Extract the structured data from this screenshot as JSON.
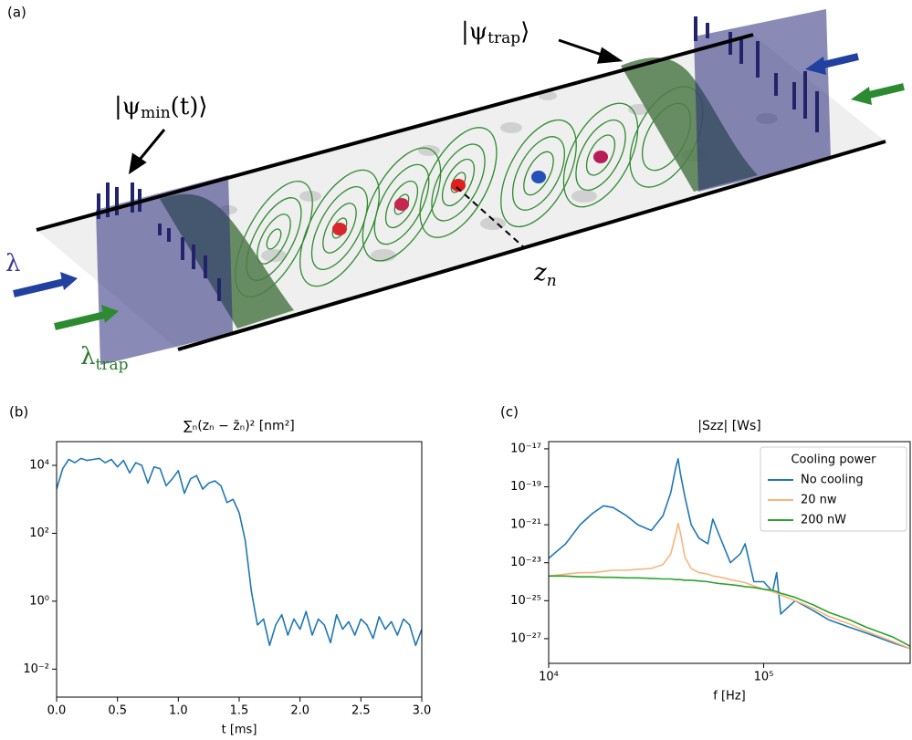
{
  "panel_a": {
    "label": "(a)",
    "psi_trap": {
      "symbol": "|ψ",
      "subscript": "trap",
      "close": "⟩"
    },
    "psi_min": {
      "symbol": "|ψ",
      "subscript": "min",
      "close": "(t)⟩"
    },
    "lambda": "λ",
    "lambda_trap": {
      "symbol": "λ",
      "subscript": "trap"
    },
    "z_n": {
      "symbol": "z",
      "subscript": "n"
    }
  },
  "chart_data": [
    {
      "type": "line",
      "panel_label": "(b)",
      "title": "∑ₙ(zₙ − z̄ₙ)² [nm²]",
      "x_label": "t [ms]",
      "color": "#1f77b4",
      "x": [
        0,
        0.05,
        0.1,
        0.15,
        0.2,
        0.25,
        0.3,
        0.35,
        0.4,
        0.45,
        0.5,
        0.55,
        0.6,
        0.65,
        0.7,
        0.75,
        0.8,
        0.85,
        0.9,
        0.95,
        1,
        1.05,
        1.1,
        1.15,
        1.2,
        1.25,
        1.3,
        1.35,
        1.4,
        1.45,
        1.5,
        1.55,
        1.6,
        1.65,
        1.7,
        1.75,
        1.8,
        1.85,
        1.9,
        1.95,
        2,
        2.05,
        2.1,
        2.15,
        2.2,
        2.25,
        2.3,
        2.35,
        2.4,
        2.45,
        2.5,
        2.55,
        2.6,
        2.65,
        2.7,
        2.75,
        2.8,
        2.85,
        2.9,
        2.95,
        3
      ],
      "values": [
        2000,
        8000,
        15000,
        12000,
        16000,
        14000,
        15000,
        16000,
        12000,
        15000,
        9000,
        14000,
        6000,
        12000,
        10000,
        3000,
        9000,
        8000,
        2500,
        4000,
        7000,
        1500,
        4000,
        5000,
        2000,
        3000,
        3500,
        2500,
        800,
        1000,
        400,
        60,
        2,
        0.2,
        0.3,
        0.05,
        0.2,
        0.4,
        0.1,
        0.3,
        0.15,
        0.5,
        0.1,
        0.3,
        0.2,
        0.06,
        0.4,
        0.15,
        0.25,
        0.1,
        0.3,
        0.2,
        0.08,
        0.35,
        0.15,
        0.25,
        0.1,
        0.3,
        0.2,
        0.05,
        0.15
      ],
      "xlim": [
        0,
        3
      ],
      "xticks": [
        {
          "value": 0,
          "label": "0.0"
        },
        0.5,
        {
          "value": 1,
          "label": "1.0"
        },
        1.5,
        {
          "value": 2,
          "label": "2.0"
        },
        2.5,
        {
          "value": 3,
          "label": "3.0"
        }
      ],
      "ylim": [
        0.0015,
        50000
      ],
      "yscale": "log",
      "yticks": [
        {
          "value": 0.01,
          "label": "10⁻²"
        },
        {
          "value": 1,
          "label": "10⁰"
        },
        {
          "value": 100,
          "label": "10²"
        },
        {
          "value": 10000,
          "label": "10⁴"
        }
      ]
    },
    {
      "type": "line",
      "panel_label": "(c)",
      "title": "|Szz| [Ws]",
      "x_label": "f [Hz]",
      "legend_title": "Cooling power",
      "legend": "upper right",
      "x": [
        10000,
        12000,
        14000,
        16000,
        18000,
        20000,
        23000,
        26000,
        30000,
        34000,
        37000,
        39000,
        40000,
        41000,
        43000,
        46000,
        50000,
        55000,
        58000,
        62000,
        70000,
        78000,
        82000,
        90000,
        100000,
        110000,
        115000,
        120000,
        140000,
        170000,
        200000,
        250000,
        300000,
        400000,
        480000
      ],
      "series": [
        {
          "name": "No cooling",
          "color": "#1f77b4",
          "values": [
            1.7e-23,
            1e-22,
            1e-21,
            4e-21,
            1e-20,
            8e-21,
            3e-21,
            1e-21,
            5e-22,
            3e-21,
            5e-20,
            1e-18,
            3e-18,
            5e-19,
            3e-20,
            1e-21,
            2e-22,
            1e-22,
            2e-21,
            3e-22,
            1e-23,
            3e-23,
            1e-22,
            1e-24,
            1e-24,
            3e-25,
            3e-24,
            2e-26,
            1e-25,
            3e-26,
            1e-26,
            4e-27,
            2e-27,
            6e-28,
            3e-28
          ]
        },
        {
          "name": "20 nw",
          "color": "#f7b57e",
          "values": [
            2e-24,
            2.5e-24,
            3e-24,
            3e-24,
            3.5e-24,
            4e-24,
            4e-24,
            4.5e-24,
            5e-24,
            8e-24,
            3e-23,
            3e-22,
            1.2e-21,
            4e-22,
            2e-23,
            5e-24,
            3e-24,
            2.5e-24,
            2e-24,
            1.8e-24,
            1.3e-24,
            1e-24,
            9e-25,
            6e-25,
            4e-25,
            3e-25,
            2.5e-25,
            2e-25,
            1e-25,
            4e-26,
            1.5e-26,
            6e-27,
            2.5e-27,
            7e-28,
            3e-28
          ]
        },
        {
          "name": "200 nW",
          "color": "#2ca02c",
          "values": [
            2e-24,
            2e-24,
            1.8e-24,
            1.8e-24,
            1.7e-24,
            1.7e-24,
            1.6e-24,
            1.6e-24,
            1.5e-24,
            1.4e-24,
            1.4e-24,
            1.3e-24,
            1.3e-24,
            1.3e-24,
            1.2e-24,
            1.2e-24,
            1.1e-24,
            1e-24,
            9e-25,
            8e-25,
            7e-25,
            6e-25,
            5.5e-25,
            5e-25,
            4e-25,
            3.5e-25,
            3e-25,
            2.5e-25,
            1.5e-25,
            6e-26,
            2.5e-26,
            1e-26,
            4e-27,
            1.2e-27,
            4e-28
          ]
        }
      ],
      "xlim": [
        10000,
        480000
      ],
      "xscale": "log",
      "xticks": [
        {
          "value": 10000,
          "label": "10⁴"
        },
        {
          "value": 100000,
          "label": "10⁵"
        }
      ],
      "ylim": [
        5e-29,
        2.4e-17
      ],
      "yscale": "log",
      "yticks": [
        {
          "value": 1e-27,
          "label": "10⁻²⁷"
        },
        {
          "value": 1e-25,
          "label": "10⁻²⁵"
        },
        {
          "value": 1e-23,
          "label": "10⁻²³"
        },
        {
          "value": 1e-21,
          "label": "10⁻²¹"
        },
        {
          "value": 1e-19,
          "label": "10⁻¹⁹"
        },
        {
          "value": 1e-17,
          "label": "10⁻¹⁷"
        }
      ]
    }
  ]
}
